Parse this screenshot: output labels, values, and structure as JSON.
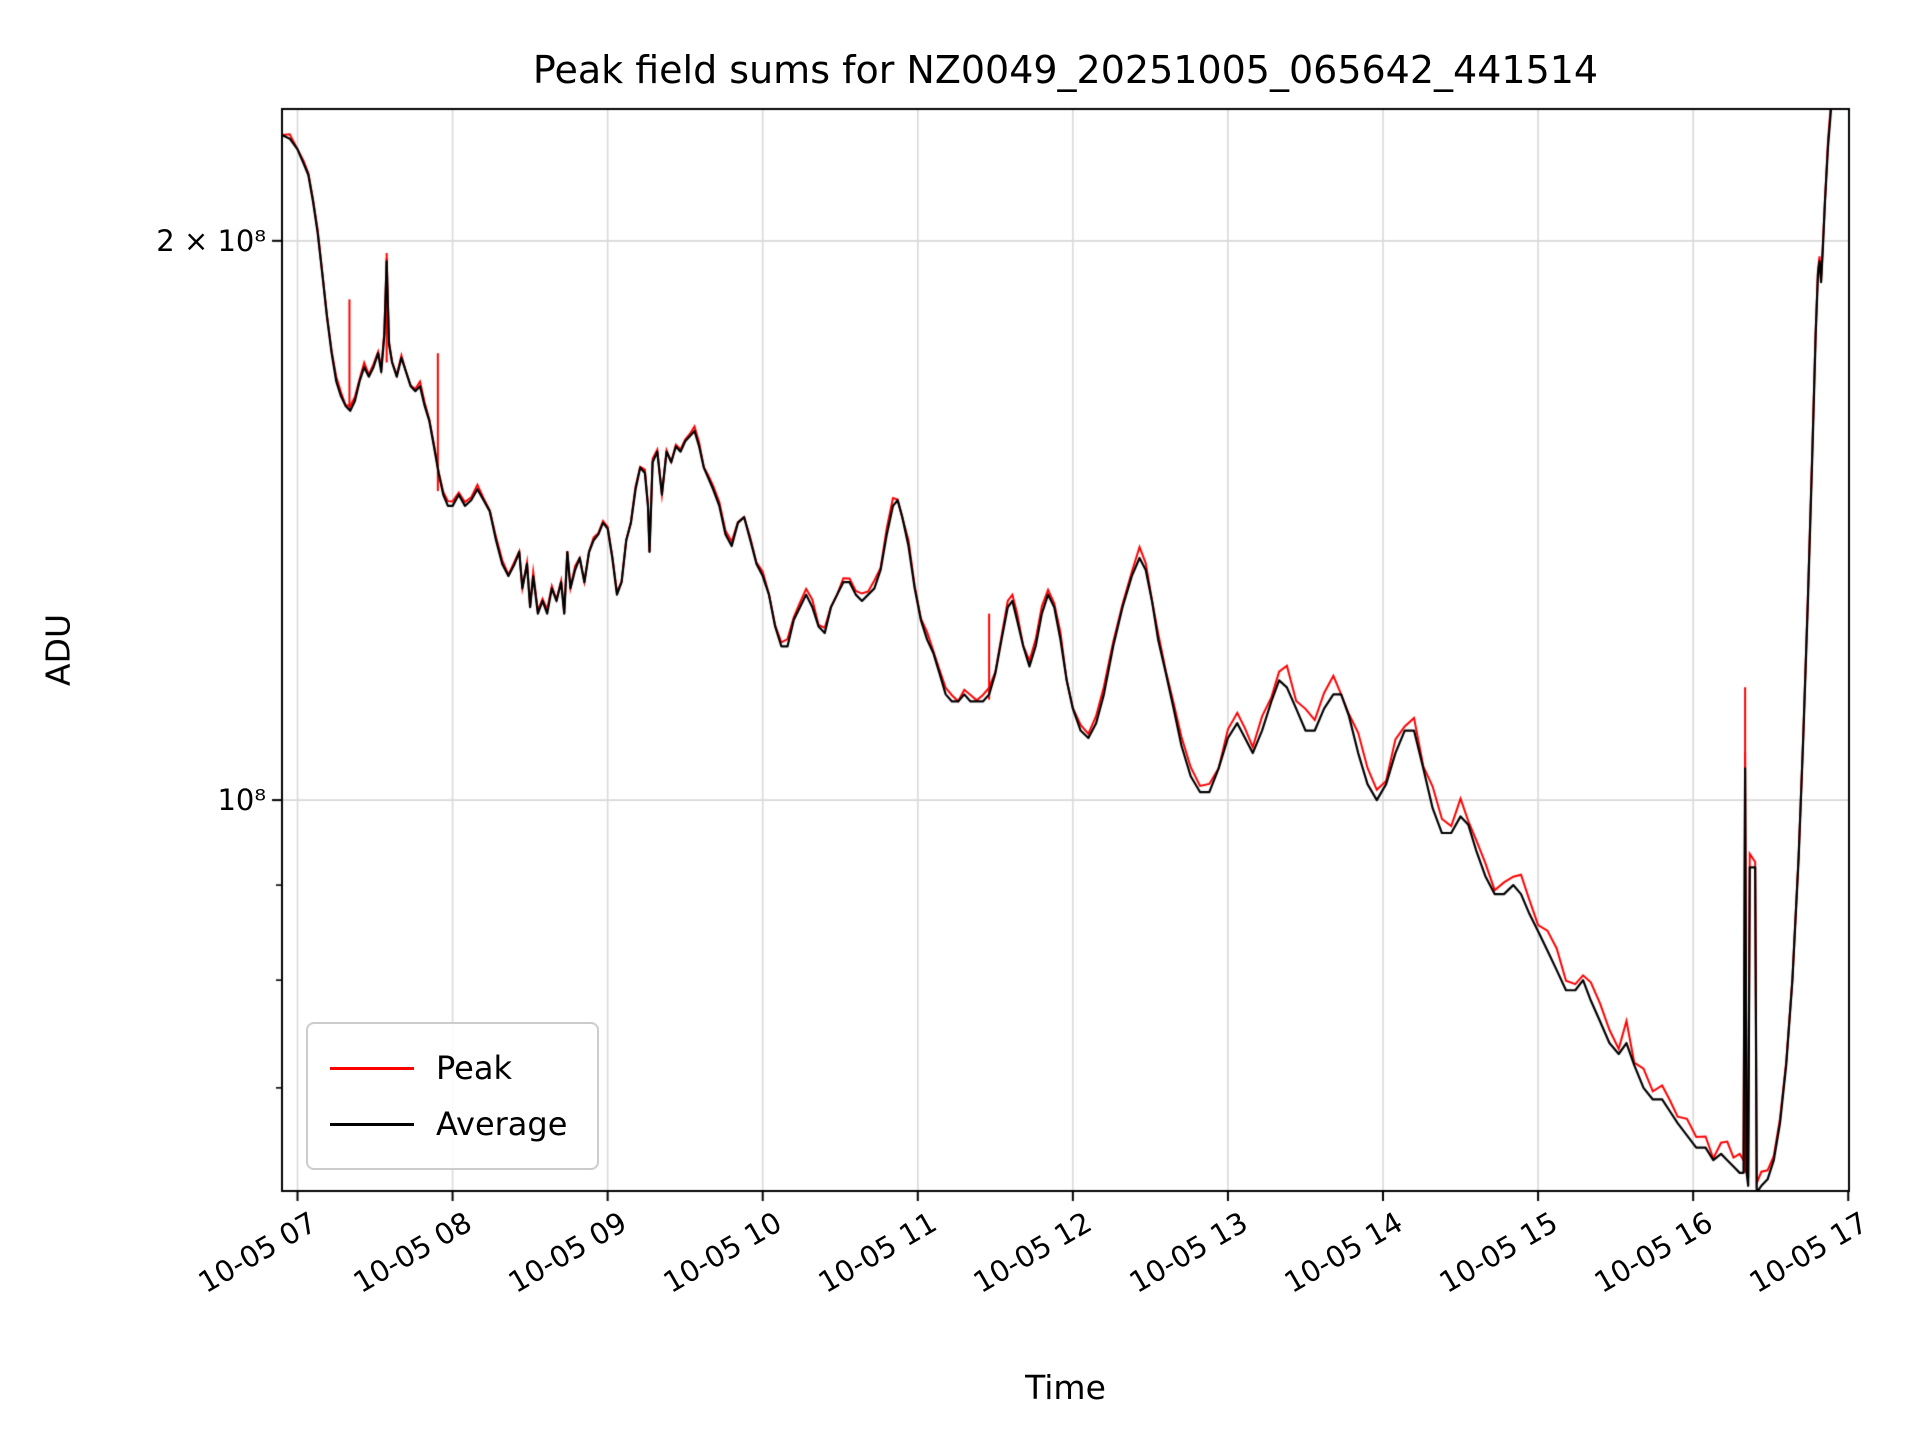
{
  "figure": {
    "background": "#ffffff"
  },
  "chart_data": {
    "type": "line",
    "title": "Peak field sums for NZ0049_20251005_065642_441514",
    "xlabel": "Time",
    "ylabel": "ADU",
    "y_scale": "log",
    "x_unit": "decimal hours on 2025-10-05",
    "x_range": [
      6.9,
      17.005
    ],
    "y_range": [
      61600000,
      235500000
    ],
    "grid": true,
    "grid_color": "#d9d9d9",
    "legend_position": "lower left",
    "points_value_scale": 100000000,
    "x_ticks": [
      {
        "t": 7,
        "label": "10-05 07"
      },
      {
        "t": 8,
        "label": "10-05 08"
      },
      {
        "t": 9,
        "label": "10-05 09"
      },
      {
        "t": 10,
        "label": "10-05 10"
      },
      {
        "t": 11,
        "label": "10-05 11"
      },
      {
        "t": 12,
        "label": "10-05 12"
      },
      {
        "t": 13,
        "label": "10-05 13"
      },
      {
        "t": 14,
        "label": "10-05 14"
      },
      {
        "t": 15,
        "label": "10-05 15"
      },
      {
        "t": 16,
        "label": "10-05 16"
      },
      {
        "t": 17,
        "label": "10-05 17"
      }
    ],
    "y_ticks": [
      {
        "v": 200000000,
        "label": "2 × 10⁸"
      },
      {
        "v": 100000000,
        "label": "10⁸"
      }
    ],
    "y_minor_ticks": [
      70000000,
      80000000,
      90000000
    ],
    "series": [
      {
        "name": "Peak",
        "color": "#ff0000",
        "render": "tracks Average with small upward jitter plus spikes",
        "spikes": [
          [
            7.335,
            1.86
          ],
          [
            7.575,
            1.97
          ],
          [
            7.905,
            1.74
          ],
          [
            11.46,
            1.26
          ],
          [
            16.335,
            1.15
          ]
        ]
      },
      {
        "name": "Average",
        "color": "#000000",
        "points": [
          [
            6.9,
            2.28
          ],
          [
            6.95,
            2.27
          ],
          [
            7.0,
            2.24
          ],
          [
            7.04,
            2.2
          ],
          [
            7.07,
            2.17
          ],
          [
            7.1,
            2.1
          ],
          [
            7.13,
            2.02
          ],
          [
            7.16,
            1.92
          ],
          [
            7.19,
            1.82
          ],
          [
            7.22,
            1.74
          ],
          [
            7.25,
            1.68
          ],
          [
            7.28,
            1.65
          ],
          [
            7.31,
            1.63
          ],
          [
            7.34,
            1.62
          ],
          [
            7.37,
            1.64
          ],
          [
            7.4,
            1.68
          ],
          [
            7.43,
            1.71
          ],
          [
            7.46,
            1.69
          ],
          [
            7.49,
            1.71
          ],
          [
            7.52,
            1.74
          ],
          [
            7.54,
            1.7
          ],
          [
            7.56,
            1.78
          ],
          [
            7.575,
            1.95
          ],
          [
            7.59,
            1.76
          ],
          [
            7.61,
            1.72
          ],
          [
            7.64,
            1.69
          ],
          [
            7.67,
            1.73
          ],
          [
            7.7,
            1.7
          ],
          [
            7.73,
            1.67
          ],
          [
            7.76,
            1.66
          ],
          [
            7.79,
            1.67
          ],
          [
            7.82,
            1.63
          ],
          [
            7.85,
            1.6
          ],
          [
            7.88,
            1.55
          ],
          [
            7.91,
            1.5
          ],
          [
            7.94,
            1.46
          ],
          [
            7.97,
            1.44
          ],
          [
            8.0,
            1.44
          ],
          [
            8.04,
            1.46
          ],
          [
            8.08,
            1.44
          ],
          [
            8.12,
            1.45
          ],
          [
            8.16,
            1.47
          ],
          [
            8.2,
            1.45
          ],
          [
            8.24,
            1.43
          ],
          [
            8.28,
            1.38
          ],
          [
            8.32,
            1.34
          ],
          [
            8.36,
            1.32
          ],
          [
            8.4,
            1.34
          ],
          [
            8.43,
            1.36
          ],
          [
            8.45,
            1.3
          ],
          [
            8.48,
            1.34
          ],
          [
            8.5,
            1.27
          ],
          [
            8.52,
            1.32
          ],
          [
            8.55,
            1.26
          ],
          [
            8.58,
            1.28
          ],
          [
            8.61,
            1.26
          ],
          [
            8.64,
            1.3
          ],
          [
            8.67,
            1.28
          ],
          [
            8.7,
            1.31
          ],
          [
            8.72,
            1.26
          ],
          [
            8.74,
            1.36
          ],
          [
            8.76,
            1.3
          ],
          [
            8.79,
            1.33
          ],
          [
            8.82,
            1.35
          ],
          [
            8.85,
            1.31
          ],
          [
            8.88,
            1.36
          ],
          [
            8.91,
            1.38
          ],
          [
            8.94,
            1.39
          ],
          [
            8.97,
            1.41
          ],
          [
            9.0,
            1.4
          ],
          [
            9.03,
            1.35
          ],
          [
            9.06,
            1.29
          ],
          [
            9.09,
            1.31
          ],
          [
            9.12,
            1.38
          ],
          [
            9.15,
            1.41
          ],
          [
            9.18,
            1.47
          ],
          [
            9.21,
            1.51
          ],
          [
            9.24,
            1.5
          ],
          [
            9.26,
            1.44
          ],
          [
            9.27,
            1.36
          ],
          [
            9.29,
            1.52
          ],
          [
            9.32,
            1.54
          ],
          [
            9.35,
            1.46
          ],
          [
            9.38,
            1.54
          ],
          [
            9.41,
            1.52
          ],
          [
            9.44,
            1.55
          ],
          [
            9.47,
            1.54
          ],
          [
            9.5,
            1.56
          ],
          [
            9.53,
            1.57
          ],
          [
            9.56,
            1.58
          ],
          [
            9.59,
            1.55
          ],
          [
            9.62,
            1.51
          ],
          [
            9.65,
            1.49
          ],
          [
            9.68,
            1.47
          ],
          [
            9.72,
            1.44
          ],
          [
            9.76,
            1.39
          ],
          [
            9.8,
            1.37
          ],
          [
            9.84,
            1.41
          ],
          [
            9.88,
            1.42
          ],
          [
            9.92,
            1.38
          ],
          [
            9.96,
            1.34
          ],
          [
            10.0,
            1.32
          ],
          [
            10.04,
            1.29
          ],
          [
            10.08,
            1.24
          ],
          [
            10.12,
            1.21
          ],
          [
            10.16,
            1.21
          ],
          [
            10.2,
            1.25
          ],
          [
            10.24,
            1.27
          ],
          [
            10.28,
            1.29
          ],
          [
            10.32,
            1.27
          ],
          [
            10.36,
            1.24
          ],
          [
            10.4,
            1.23
          ],
          [
            10.44,
            1.27
          ],
          [
            10.48,
            1.29
          ],
          [
            10.52,
            1.31
          ],
          [
            10.56,
            1.31
          ],
          [
            10.6,
            1.29
          ],
          [
            10.64,
            1.28
          ],
          [
            10.68,
            1.29
          ],
          [
            10.72,
            1.3
          ],
          [
            10.76,
            1.33
          ],
          [
            10.8,
            1.39
          ],
          [
            10.84,
            1.44
          ],
          [
            10.87,
            1.45
          ],
          [
            10.9,
            1.42
          ],
          [
            10.94,
            1.37
          ],
          [
            10.98,
            1.3
          ],
          [
            11.02,
            1.25
          ],
          [
            11.06,
            1.22
          ],
          [
            11.1,
            1.2
          ],
          [
            11.14,
            1.17
          ],
          [
            11.18,
            1.14
          ],
          [
            11.22,
            1.13
          ],
          [
            11.26,
            1.13
          ],
          [
            11.3,
            1.14
          ],
          [
            11.34,
            1.13
          ],
          [
            11.38,
            1.13
          ],
          [
            11.42,
            1.13
          ],
          [
            11.46,
            1.14
          ],
          [
            11.5,
            1.17
          ],
          [
            11.54,
            1.22
          ],
          [
            11.58,
            1.27
          ],
          [
            11.61,
            1.28
          ],
          [
            11.64,
            1.25
          ],
          [
            11.68,
            1.21
          ],
          [
            11.72,
            1.18
          ],
          [
            11.76,
            1.21
          ],
          [
            11.8,
            1.26
          ],
          [
            11.84,
            1.29
          ],
          [
            11.88,
            1.27
          ],
          [
            11.92,
            1.22
          ],
          [
            11.96,
            1.16
          ],
          [
            12.0,
            1.12
          ],
          [
            12.05,
            1.09
          ],
          [
            12.1,
            1.08
          ],
          [
            12.15,
            1.1
          ],
          [
            12.2,
            1.14
          ],
          [
            12.26,
            1.21
          ],
          [
            12.32,
            1.27
          ],
          [
            12.38,
            1.32
          ],
          [
            12.43,
            1.35
          ],
          [
            12.47,
            1.33
          ],
          [
            12.51,
            1.28
          ],
          [
            12.55,
            1.22
          ],
          [
            12.6,
            1.17
          ],
          [
            12.65,
            1.12
          ],
          [
            12.7,
            1.07
          ],
          [
            12.76,
            1.03
          ],
          [
            12.82,
            1.01
          ],
          [
            12.88,
            1.01
          ],
          [
            12.94,
            1.04
          ],
          [
            13.0,
            1.08
          ],
          [
            13.06,
            1.1
          ],
          [
            13.11,
            1.08
          ],
          [
            13.16,
            1.06
          ],
          [
            13.22,
            1.09
          ],
          [
            13.28,
            1.13
          ],
          [
            13.33,
            1.16
          ],
          [
            13.38,
            1.15
          ],
          [
            13.44,
            1.12
          ],
          [
            13.5,
            1.09
          ],
          [
            13.56,
            1.09
          ],
          [
            13.62,
            1.12
          ],
          [
            13.68,
            1.14
          ],
          [
            13.73,
            1.14
          ],
          [
            13.78,
            1.11
          ],
          [
            13.84,
            1.06
          ],
          [
            13.9,
            1.02
          ],
          [
            13.96,
            1.0
          ],
          [
            14.02,
            1.02
          ],
          [
            14.08,
            1.06
          ],
          [
            14.14,
            1.09
          ],
          [
            14.2,
            1.09
          ],
          [
            14.26,
            1.04
          ],
          [
            14.32,
            0.99
          ],
          [
            14.38,
            0.96
          ],
          [
            14.44,
            0.96
          ],
          [
            14.5,
            0.98
          ],
          [
            14.55,
            0.97
          ],
          [
            14.6,
            0.94
          ],
          [
            14.66,
            0.91
          ],
          [
            14.72,
            0.89
          ],
          [
            14.78,
            0.89
          ],
          [
            14.84,
            0.9
          ],
          [
            14.89,
            0.89
          ],
          [
            14.94,
            0.87
          ],
          [
            15.0,
            0.85
          ],
          [
            15.06,
            0.83
          ],
          [
            15.12,
            0.81
          ],
          [
            15.18,
            0.79
          ],
          [
            15.24,
            0.79
          ],
          [
            15.29,
            0.8
          ],
          [
            15.34,
            0.78
          ],
          [
            15.4,
            0.76
          ],
          [
            15.46,
            0.74
          ],
          [
            15.52,
            0.73
          ],
          [
            15.57,
            0.74
          ],
          [
            15.62,
            0.72
          ],
          [
            15.68,
            0.7
          ],
          [
            15.74,
            0.69
          ],
          [
            15.8,
            0.69
          ],
          [
            15.85,
            0.68
          ],
          [
            15.9,
            0.67
          ],
          [
            15.96,
            0.66
          ],
          [
            16.02,
            0.65
          ],
          [
            16.08,
            0.65
          ],
          [
            16.13,
            0.64
          ],
          [
            16.18,
            0.645
          ],
          [
            16.22,
            0.64
          ],
          [
            16.26,
            0.635
          ],
          [
            16.3,
            0.63
          ],
          [
            16.325,
            0.63
          ],
          [
            16.335,
            1.04
          ],
          [
            16.345,
            0.63
          ],
          [
            16.355,
            0.62
          ],
          [
            16.365,
            0.92
          ],
          [
            16.4,
            0.92
          ],
          [
            16.41,
            0.615
          ],
          [
            16.44,
            0.62
          ],
          [
            16.48,
            0.625
          ],
          [
            16.52,
            0.64
          ],
          [
            16.56,
            0.67
          ],
          [
            16.6,
            0.72
          ],
          [
            16.64,
            0.8
          ],
          [
            16.68,
            0.93
          ],
          [
            16.71,
            1.08
          ],
          [
            16.74,
            1.28
          ],
          [
            16.77,
            1.55
          ],
          [
            16.79,
            1.78
          ],
          [
            16.805,
            1.92
          ],
          [
            16.815,
            1.95
          ],
          [
            16.825,
            1.9
          ],
          [
            16.835,
            1.97
          ],
          [
            16.85,
            2.1
          ],
          [
            16.87,
            2.25
          ],
          [
            16.89,
            2.36
          ],
          [
            16.92,
            2.44
          ],
          [
            16.98,
            2.5
          ]
        ]
      }
    ]
  }
}
